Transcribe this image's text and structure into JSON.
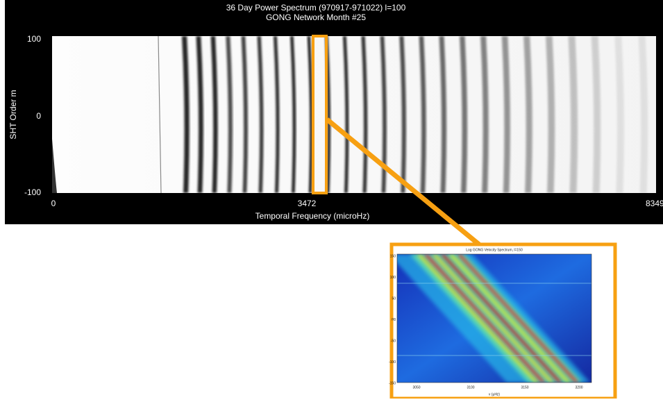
{
  "main_plot": {
    "title": "36 Day Power Spectrum (970917-971022) l=100",
    "subtitle": "GONG Network Month #25",
    "y_label": "SHT Order m",
    "y_ticks": [
      "100",
      "0",
      "-100"
    ],
    "x_label": "Temporal Frequency (microHz)",
    "x_ticks": [
      "0",
      "3472",
      "8349"
    ]
  },
  "inset_plot": {
    "title": "Log GONG Velocity Spectrum, l=150",
    "y_label": "m",
    "x_label": "ν (μHz)",
    "y_ticks": [
      "150",
      "100",
      "50",
      "0",
      "-50",
      "-100",
      "-150"
    ],
    "x_ticks": [
      "3050",
      "3100",
      "3150",
      "3200"
    ]
  }
}
